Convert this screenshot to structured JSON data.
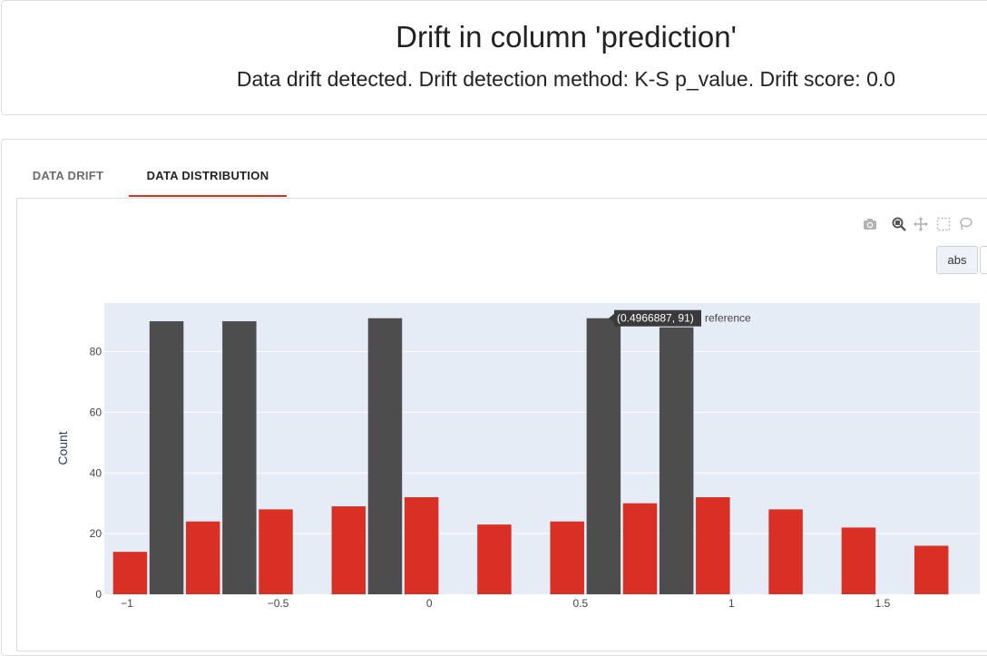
{
  "header": {
    "title": "Drift in column 'prediction'",
    "subtitle": "Data drift detected. Drift detection method: K-S p_value. Drift score: 0.0"
  },
  "tabs": [
    {
      "label": "DATA DRIFT",
      "active": false
    },
    {
      "label": "DATA DISTRIBUTION",
      "active": true
    }
  ],
  "toolbar": {
    "icons": [
      "camera-icon",
      "zoom-icon",
      "pan-icon",
      "box-select-icon",
      "lasso-select-icon"
    ],
    "abs_label": "abs"
  },
  "colors": {
    "current": "#d93025",
    "reference": "#4d4d4d",
    "plot_bg": "#e5ecf6",
    "active_tab_underline": "#d93025"
  },
  "chart_data": {
    "type": "bar",
    "mode": "group",
    "ylabel": "Count",
    "xlim": [
      -1.05,
      1.75
    ],
    "ylim": [
      0,
      96
    ],
    "x_ticks": [
      -1,
      -0.5,
      0,
      0.5,
      1,
      1.5
    ],
    "x_tick_labels": [
      "−1",
      "−0.5",
      "0",
      "0.5",
      "1",
      "1.5"
    ],
    "y_ticks": [
      0,
      20,
      40,
      60,
      80
    ],
    "y_tick_labels": [
      "0",
      "20",
      "40",
      "60",
      "80"
    ],
    "grid": true,
    "bin_width": 0.241,
    "bin_starts": [
      -1.05,
      -0.809,
      -0.568,
      -0.327,
      -0.086,
      0.155,
      0.396,
      0.637,
      0.878,
      1.119,
      1.36,
      1.601
    ],
    "series": [
      {
        "name": "current",
        "values": [
          14,
          24,
          28,
          29,
          32,
          23,
          24,
          30,
          32,
          28,
          22,
          16
        ]
      },
      {
        "name": "reference",
        "values": [
          90,
          90,
          0,
          91,
          0,
          0,
          91,
          88,
          0,
          0,
          0,
          0
        ]
      }
    ],
    "hover": {
      "label": "(0.4966887, 91)",
      "series": "reference"
    }
  }
}
